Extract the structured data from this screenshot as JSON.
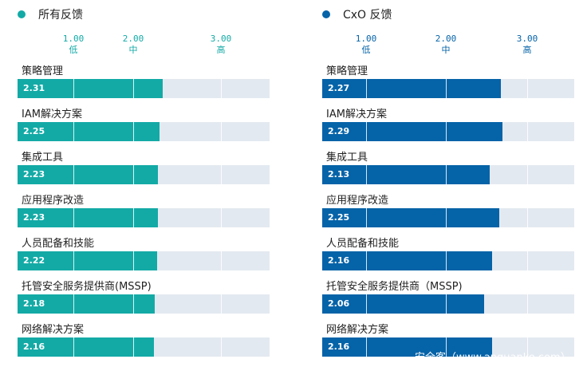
{
  "chart_data": [
    {
      "type": "bar",
      "title": "所有反馈",
      "color": "#13aaa6",
      "xlim": [
        0,
        4
      ],
      "ticks": [
        {
          "value": "1.00",
          "label": "低"
        },
        {
          "value": "2.00",
          "label": "中"
        },
        {
          "value": "3.00",
          "label": "高"
        }
      ],
      "categories": [
        "策略管理",
        "IAM解决方案",
        "集成工具",
        "应用程序改造",
        "人员配备和技能",
        "托管安全服务提供商(MSSP)",
        "网络解决方案"
      ],
      "values": [
        2.31,
        2.25,
        2.23,
        2.23,
        2.22,
        2.18,
        2.16
      ],
      "value_labels": [
        "2.31",
        "2.25",
        "2.23",
        "2.23",
        "2.22",
        "2.18",
        "2.16"
      ]
    },
    {
      "type": "bar",
      "title": "CxO 反馈",
      "color": "#0563a8",
      "xlim": [
        0,
        3.2
      ],
      "ticks": [
        {
          "value": "1.00",
          "label": "低"
        },
        {
          "value": "2.00",
          "label": "中"
        },
        {
          "value": "3.00",
          "label": "高"
        }
      ],
      "categories": [
        "策略管理",
        "IAM解决方案",
        "集成工具",
        "应用程序改造",
        "人员配备和技能",
        "托管安全服务提供商（MSSP)",
        "网络解决方案"
      ],
      "values": [
        2.27,
        2.29,
        2.13,
        2.25,
        2.16,
        2.06,
        2.16
      ],
      "value_labels": [
        "2.27",
        "2.29",
        "2.13",
        "2.25",
        "2.16",
        "2.06",
        "2.16"
      ]
    }
  ],
  "watermark": "安全客（www.anquanke.com）"
}
